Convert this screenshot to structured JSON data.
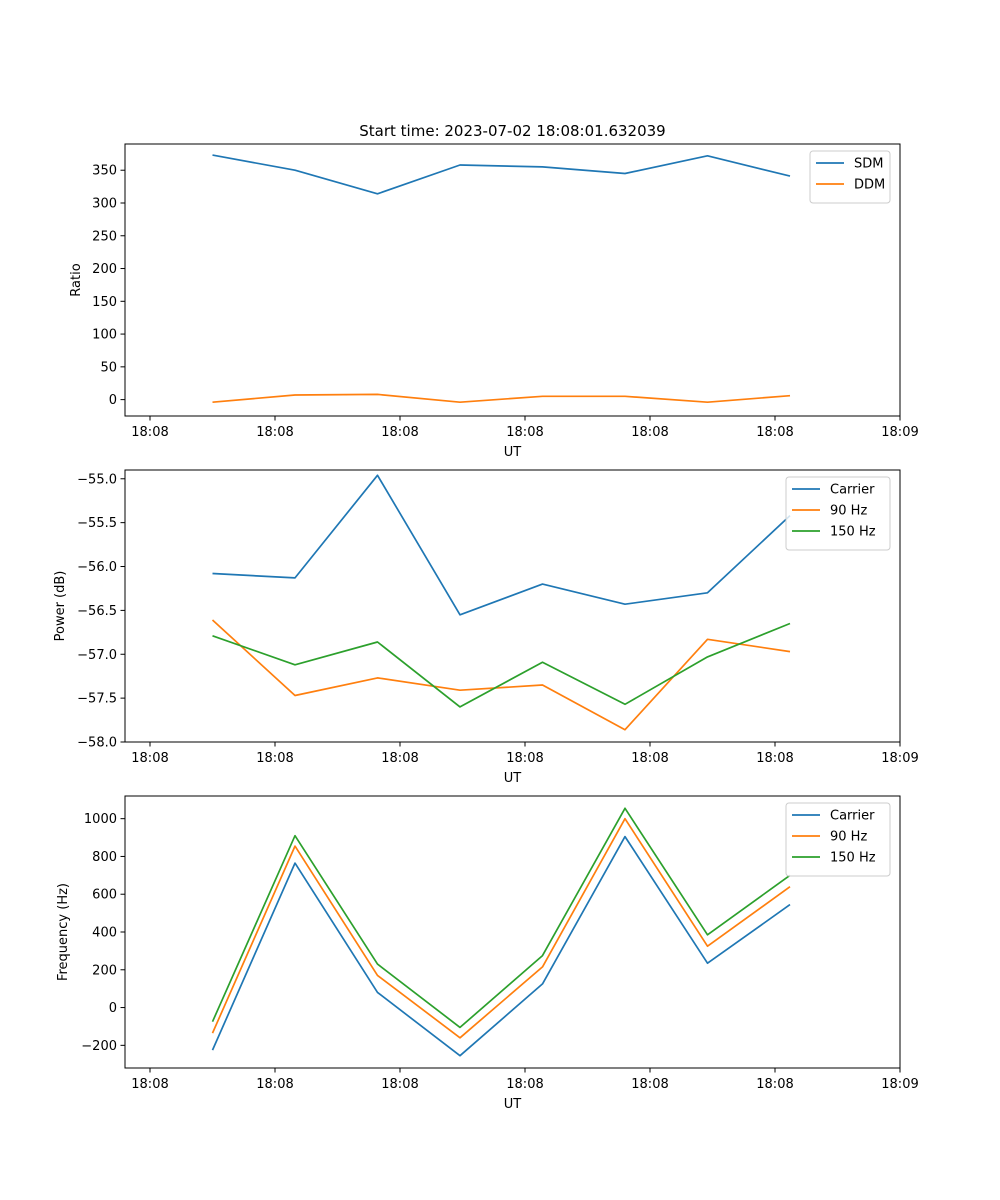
{
  "figure_title": "Start time: 2023-07-02 18:08:01.632039",
  "chart_data": [
    {
      "type": "line",
      "title": "Start time: 2023-07-02 18:08:01.632039",
      "xlabel": "UT",
      "ylabel": "Ratio",
      "x_tick_labels": [
        "18:08",
        "18:08",
        "18:08",
        "18:08",
        "18:08",
        "18:08",
        "18:09"
      ],
      "x_ticks": [
        0,
        1,
        2,
        3,
        4,
        5,
        6
      ],
      "xlim": [
        -0.2,
        6.0
      ],
      "x": [
        0.5,
        1.16,
        1.82,
        2.48,
        3.14,
        3.8,
        4.46,
        5.12
      ],
      "ylim": [
        -25,
        390
      ],
      "y_ticks": [
        0,
        50,
        100,
        150,
        200,
        250,
        300,
        350
      ],
      "legend_position": "upper-right",
      "series": [
        {
          "name": "SDM",
          "color": "#1f77b4",
          "values": [
            373,
            350,
            314,
            358,
            355,
            345,
            372,
            341
          ]
        },
        {
          "name": "DDM",
          "color": "#ff7f0e",
          "values": [
            -4,
            7,
            8,
            -4,
            5,
            5,
            -4,
            6
          ]
        }
      ]
    },
    {
      "type": "line",
      "title": "",
      "xlabel": "UT",
      "ylabel": "Power (dB)",
      "x_tick_labels": [
        "18:08",
        "18:08",
        "18:08",
        "18:08",
        "18:08",
        "18:08",
        "18:09"
      ],
      "x_ticks": [
        0,
        1,
        2,
        3,
        4,
        5,
        6
      ],
      "xlim": [
        -0.2,
        6.0
      ],
      "x": [
        0.5,
        1.16,
        1.82,
        2.48,
        3.14,
        3.8,
        4.46,
        5.12
      ],
      "ylim": [
        -58.0,
        -54.9
      ],
      "y_ticks": [
        -58.0,
        -57.5,
        -57.0,
        -56.5,
        -56.0,
        -55.5,
        -55.0
      ],
      "y_tick_labels": [
        "−58.0",
        "−57.5",
        "−57.0",
        "−56.5",
        "−56.0",
        "−55.5",
        "−55.0"
      ],
      "legend_position": "upper-right",
      "series": [
        {
          "name": "Carrier",
          "color": "#1f77b4",
          "values": [
            -56.08,
            -56.13,
            -54.96,
            -56.55,
            -56.2,
            -56.43,
            -56.3,
            -55.42
          ]
        },
        {
          "name": "90 Hz",
          "color": "#ff7f0e",
          "values": [
            -56.61,
            -57.47,
            -57.27,
            -57.41,
            -57.35,
            -57.86,
            -56.83,
            -56.97
          ]
        },
        {
          "name": "150 Hz",
          "color": "#2ca02c",
          "values": [
            -56.79,
            -57.12,
            -56.86,
            -57.6,
            -57.09,
            -57.57,
            -57.03,
            -56.65
          ]
        }
      ]
    },
    {
      "type": "line",
      "title": "",
      "xlabel": "UT",
      "ylabel": "Frequency (Hz)",
      "x_tick_labels": [
        "18:08",
        "18:08",
        "18:08",
        "18:08",
        "18:08",
        "18:08",
        "18:09"
      ],
      "x_ticks": [
        0,
        1,
        2,
        3,
        4,
        5,
        6
      ],
      "xlim": [
        -0.2,
        6.0
      ],
      "x": [
        0.5,
        1.16,
        1.82,
        2.48,
        3.14,
        3.8,
        4.46,
        5.12
      ],
      "ylim": [
        -320,
        1120
      ],
      "y_ticks": [
        -200,
        0,
        200,
        400,
        600,
        800,
        1000
      ],
      "y_tick_labels": [
        "−200",
        "0",
        "200",
        "400",
        "600",
        "800",
        "1000"
      ],
      "legend_position": "upper-right",
      "series": [
        {
          "name": "Carrier",
          "color": "#1f77b4",
          "values": [
            -225,
            765,
            80,
            -255,
            125,
            905,
            235,
            545
          ]
        },
        {
          "name": "90 Hz",
          "color": "#ff7f0e",
          "values": [
            -135,
            855,
            170,
            -160,
            215,
            1000,
            325,
            640
          ]
        },
        {
          "name": "150 Hz",
          "color": "#2ca02c",
          "values": [
            -75,
            910,
            230,
            -105,
            275,
            1055,
            385,
            700
          ]
        }
      ]
    }
  ]
}
